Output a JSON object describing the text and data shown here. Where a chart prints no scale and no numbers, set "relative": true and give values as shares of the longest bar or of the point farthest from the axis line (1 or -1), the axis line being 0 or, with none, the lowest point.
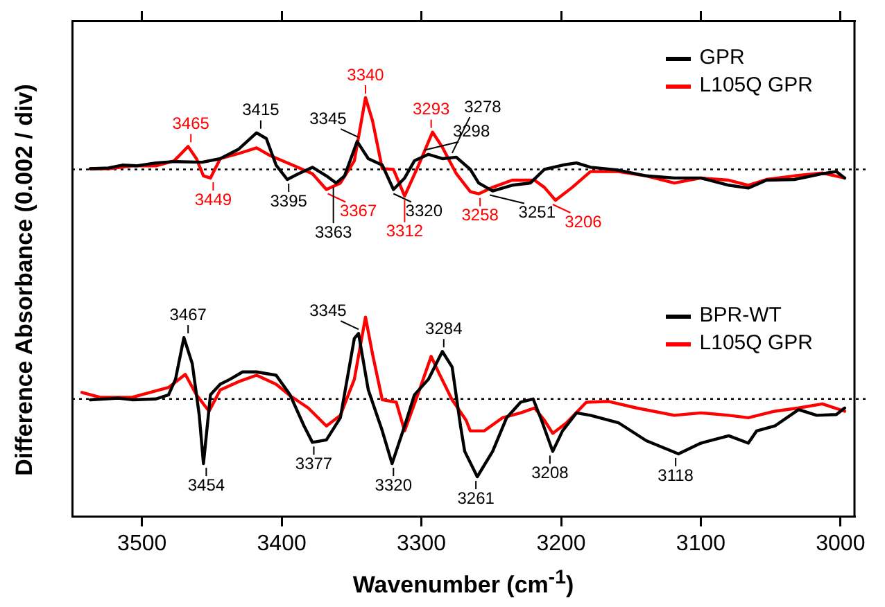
{
  "chart_data": [
    {
      "type": "line",
      "relative": true,
      "ylabel": "Difference Absorbance (0.002 / div)",
      "xlim": [
        3550,
        2990
      ],
      "xticks": [
        3500,
        3400,
        3300,
        3200,
        3100,
        3000
      ],
      "tick_labels": false,
      "legend": "top right",
      "marker": "none",
      "ref_lines": [
        {
          "axis": "y",
          "value": 0,
          "line_style": "dotted",
          "color": "#000000"
        }
      ],
      "series": [
        {
          "name": "GPR",
          "color": "#000000",
          "x": [
            3537,
            3524,
            3514,
            3504,
            3490,
            3477,
            3457,
            3444,
            3431,
            3418,
            3411,
            3404,
            3396,
            3388,
            3378,
            3368,
            3361,
            3355,
            3346,
            3338,
            3328,
            3320,
            3312,
            3305,
            3295,
            3285,
            3275,
            3265,
            3259,
            3249,
            3235,
            3222,
            3212,
            3199,
            3189,
            3179,
            3159,
            3139,
            3119,
            3100,
            3080,
            3066,
            3053,
            3033,
            3013,
            3003,
            2997
          ],
          "values": [
            0.01,
            0.02,
            0.06,
            0.05,
            0.09,
            0.11,
            0.1,
            0.15,
            0.28,
            0.51,
            0.43,
            0.06,
            -0.14,
            -0.06,
            0.03,
            -0.09,
            -0.19,
            -0.09,
            0.39,
            0.15,
            0.06,
            -0.28,
            -0.12,
            0.12,
            0.21,
            0.15,
            0.17,
            0,
            -0.19,
            -0.3,
            -0.22,
            -0.19,
            0,
            0.06,
            0.09,
            0.03,
            -0.01,
            -0.09,
            -0.12,
            -0.12,
            -0.22,
            -0.26,
            -0.15,
            -0.14,
            -0.06,
            -0.03,
            -0.12
          ]
        },
        {
          "name": "L105Q GPR",
          "color": "#ff0000",
          "x": [
            3537,
            3524,
            3507,
            3490,
            3477,
            3467,
            3461,
            3456,
            3451,
            3444,
            3431,
            3418,
            3408,
            3391,
            3378,
            3368,
            3358,
            3348,
            3340,
            3335,
            3328,
            3320,
            3312,
            3302,
            3292,
            3285,
            3275,
            3265,
            3259,
            3249,
            3235,
            3219,
            3212,
            3204,
            3192,
            3179,
            3159,
            3139,
            3119,
            3100,
            3080,
            3066,
            3053,
            3033,
            3013,
            2997
          ],
          "values": [
            0.01,
            0.01,
            0.05,
            0.05,
            0.12,
            0.32,
            0.15,
            -0.09,
            -0.12,
            0.15,
            0.22,
            0.3,
            0.19,
            0.05,
            -0.06,
            -0.28,
            -0.19,
            0.12,
            1,
            0.68,
            0.01,
            0,
            -0.37,
            0.06,
            0.52,
            0.31,
            -0.06,
            -0.31,
            -0.34,
            -0.25,
            -0.15,
            -0.15,
            -0.25,
            -0.43,
            -0.25,
            -0.03,
            -0.03,
            -0.09,
            -0.19,
            -0.12,
            -0.15,
            -0.22,
            -0.14,
            -0.09,
            -0.05,
            -0.12
          ]
        }
      ],
      "annotations": [
        {
          "text": "3465",
          "x": 3465,
          "y": 0.32
        },
        {
          "text": "3449",
          "x": 3449,
          "y": -0.12
        },
        {
          "text": "3415",
          "x": 3415,
          "y": 0.51
        },
        {
          "text": "3395",
          "x": 3395,
          "y": -0.14
        },
        {
          "text": "3367",
          "x": 3367,
          "y": -0.28
        },
        {
          "text": "3363",
          "x": 3363,
          "y": -0.19
        },
        {
          "text": "3345",
          "x": 3345,
          "y": 0.39
        },
        {
          "text": "3340",
          "x": 3340,
          "y": 1
        },
        {
          "text": "3320",
          "x": 3320,
          "y": -0.28
        },
        {
          "text": "3312",
          "x": 3312,
          "y": -0.37
        },
        {
          "text": "3298",
          "x": 3298,
          "y": 0.21
        },
        {
          "text": "3293",
          "x": 3293,
          "y": 0.52
        },
        {
          "text": "3278",
          "x": 3278,
          "y": 0.17
        },
        {
          "text": "3258",
          "x": 3258,
          "y": -0.34
        },
        {
          "text": "3251",
          "x": 3251,
          "y": -0.3
        },
        {
          "text": "3206",
          "x": 3206,
          "y": -0.43
        }
      ]
    },
    {
      "type": "line",
      "relative": true,
      "xlabel": "Wavenumber (cm$^{-1}$)",
      "xlim": [
        3550,
        2990
      ],
      "xticks": [
        3500,
        3400,
        3300,
        3200,
        3100,
        3000
      ],
      "tick_labels": "x",
      "legend": "top right",
      "marker": "none",
      "ref_lines": [
        {
          "axis": "y",
          "value": 0,
          "line_style": "dotted",
          "color": "#000000"
        }
      ],
      "series": [
        {
          "name": "BPR-WT",
          "color": "#000000",
          "x": [
            3537,
            3517,
            3507,
            3490,
            3481,
            3476,
            3470,
            3464,
            3459,
            3456,
            3451,
            3444,
            3437,
            3428,
            3418,
            3404,
            3394,
            3384,
            3378,
            3368,
            3358,
            3348,
            3345,
            3338,
            3328,
            3321,
            3312,
            3305,
            3295,
            3285,
            3278,
            3272,
            3269,
            3260,
            3249,
            3239,
            3229,
            3220,
            3214,
            3206,
            3199,
            3189,
            3179,
            3159,
            3139,
            3116,
            3100,
            3080,
            3066,
            3060,
            3047,
            3030,
            3017,
            3003,
            2997
          ],
          "values": [
            -0.01,
            0.01,
            -0.01,
            0,
            0.05,
            0.24,
            0.75,
            0.43,
            -0.2,
            -0.79,
            0.05,
            0.18,
            0.24,
            0.33,
            0.33,
            0.29,
            0.05,
            -0.33,
            -0.53,
            -0.5,
            -0.23,
            0.74,
            0.8,
            0.11,
            -0.39,
            -0.79,
            -0.33,
            0.05,
            0.24,
            0.58,
            0.39,
            -0.33,
            -0.64,
            -0.95,
            -0.64,
            -0.23,
            -0.04,
            0,
            -0.26,
            -0.64,
            -0.39,
            -0.17,
            -0.2,
            -0.29,
            -0.51,
            -0.67,
            -0.54,
            -0.45,
            -0.54,
            -0.39,
            -0.33,
            -0.13,
            -0.2,
            -0.19,
            -0.11
          ]
        },
        {
          "name": "L105Q GPR",
          "color": "#ff0000",
          "x": [
            3543,
            3530,
            3507,
            3481,
            3469,
            3461,
            3452,
            3444,
            3431,
            3418,
            3404,
            3394,
            3381,
            3368,
            3358,
            3348,
            3340,
            3335,
            3328,
            3318,
            3312,
            3302,
            3293,
            3287,
            3278,
            3268,
            3265,
            3255,
            3242,
            3229,
            3219,
            3212,
            3206,
            3196,
            3182,
            3166,
            3146,
            3119,
            3100,
            3080,
            3066,
            3047,
            3030,
            3013,
            2997
          ],
          "values": [
            0.08,
            0.02,
            0.02,
            0.14,
            0.3,
            0.05,
            -0.15,
            0.11,
            0.21,
            0.29,
            0.18,
            0.04,
            -0.11,
            -0.33,
            -0.2,
            0.24,
            1,
            0.55,
            -0.01,
            -0.04,
            -0.39,
            0.08,
            0.52,
            0.3,
            -0.01,
            -0.26,
            -0.39,
            -0.39,
            -0.23,
            -0.17,
            -0.11,
            -0.26,
            -0.42,
            -0.29,
            -0.04,
            -0.03,
            -0.11,
            -0.2,
            -0.17,
            -0.2,
            -0.23,
            -0.15,
            -0.11,
            -0.06,
            -0.15
          ]
        }
      ],
      "annotations": [
        {
          "text": "3467",
          "x": 3467,
          "y": 0.75
        },
        {
          "text": "3454",
          "x": 3454,
          "y": -0.79
        },
        {
          "text": "3377",
          "x": 3377,
          "y": -0.53
        },
        {
          "text": "3345",
          "x": 3345,
          "y": 0.8
        },
        {
          "text": "3320",
          "x": 3320,
          "y": -0.79
        },
        {
          "text": "3284",
          "x": 3284,
          "y": 0.58
        },
        {
          "text": "3261",
          "x": 3261,
          "y": -0.95
        },
        {
          "text": "3208",
          "x": 3208,
          "y": -0.64
        },
        {
          "text": "3118",
          "x": 3118,
          "y": -0.67
        }
      ]
    }
  ]
}
